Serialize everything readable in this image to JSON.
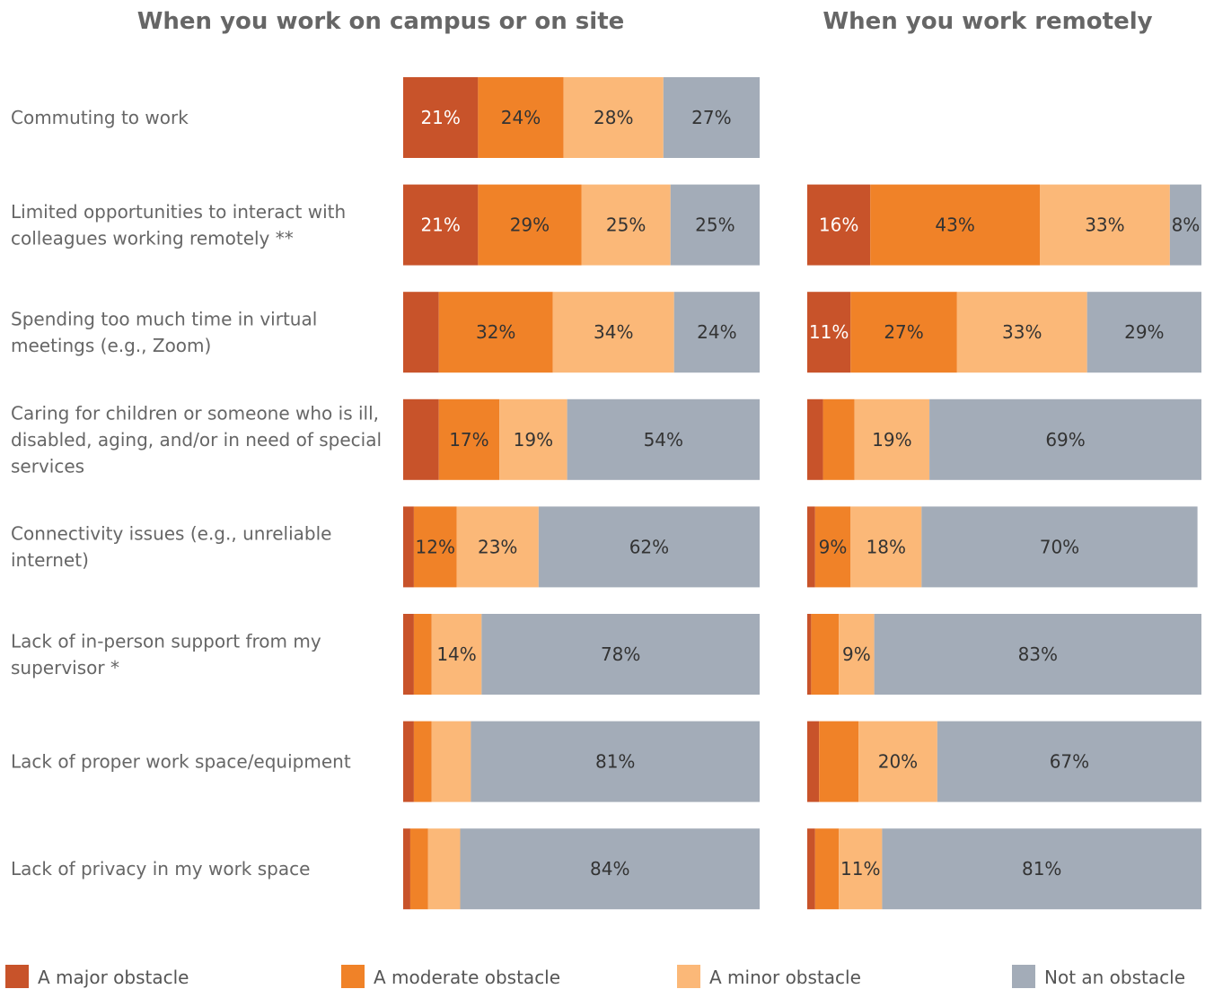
{
  "chart_data": {
    "type": "bar",
    "orientation": "horizontal",
    "stacked": "100%",
    "panels": [
      {
        "key": "campus",
        "title": "When you work on campus or on site"
      },
      {
        "key": "remote",
        "title": "When you work remotely"
      }
    ],
    "categories": [
      [
        "Commuting to work"
      ],
      [
        "Limited opportunities to interact with",
        "colleagues working remotely **"
      ],
      [
        "Spending too much time in virtual",
        "meetings (e.g., Zoom)"
      ],
      [
        "Caring for children or someone who is ill,",
        "disabled, aging, and/or in need of special",
        "services"
      ],
      [
        "Connectivity issues (e.g., unreliable",
        "internet)"
      ],
      [
        "Lack of in-person support from my",
        "supervisor *"
      ],
      [
        "Lack of proper work space/equipment"
      ],
      [
        "Lack of privacy in my work space"
      ]
    ],
    "series": [
      {
        "name": "A major obstacle",
        "color": "#c8532a",
        "campus": [
          21,
          21,
          10,
          10,
          3,
          3,
          3,
          2
        ],
        "remote": [
          null,
          16,
          11,
          4,
          2,
          1,
          3,
          2
        ]
      },
      {
        "name": "A moderate obstacle",
        "color": "#f08228",
        "campus": [
          24,
          29,
          32,
          17,
          12,
          5,
          5,
          5
        ],
        "remote": [
          null,
          43,
          27,
          8,
          9,
          7,
          10,
          6
        ]
      },
      {
        "name": "A minor obstacle",
        "color": "#fbb878",
        "campus": [
          28,
          25,
          34,
          19,
          23,
          14,
          11,
          9
        ],
        "remote": [
          null,
          33,
          33,
          19,
          18,
          9,
          20,
          11
        ]
      },
      {
        "name": "Not an obstacle",
        "color": "#a3acb8",
        "campus": [
          27,
          25,
          24,
          54,
          62,
          78,
          81,
          84
        ],
        "remote": [
          null,
          8,
          29,
          69,
          70,
          83,
          67,
          81
        ]
      }
    ],
    "data_labels": {
      "campus": [
        [
          "21%",
          "24%",
          "28%",
          "27%"
        ],
        [
          "21%",
          "29%",
          "25%",
          "25%"
        ],
        [
          "",
          "32%",
          "34%",
          "24%"
        ],
        [
          "",
          "17%",
          "19%",
          "54%"
        ],
        [
          "",
          "12%",
          "23%",
          "62%"
        ],
        [
          "",
          "",
          "14%",
          "78%"
        ],
        [
          "",
          "",
          "",
          "81%"
        ],
        [
          "",
          "",
          "",
          "84%"
        ]
      ],
      "remote": [
        [
          "",
          "",
          "",
          ""
        ],
        [
          "16%",
          "43%",
          "33%",
          "8%"
        ],
        [
          "11%",
          "27%",
          "33%",
          "29%"
        ],
        [
          "",
          "",
          "19%",
          "69%"
        ],
        [
          "",
          "9%",
          "18%",
          "70%"
        ],
        [
          "",
          "",
          "9%",
          "83%"
        ],
        [
          "",
          "",
          "20%",
          "67%"
        ],
        [
          "",
          "",
          "11%",
          "81%"
        ]
      ]
    },
    "xlim": [
      0,
      100
    ],
    "legend_position": "bottom"
  }
}
